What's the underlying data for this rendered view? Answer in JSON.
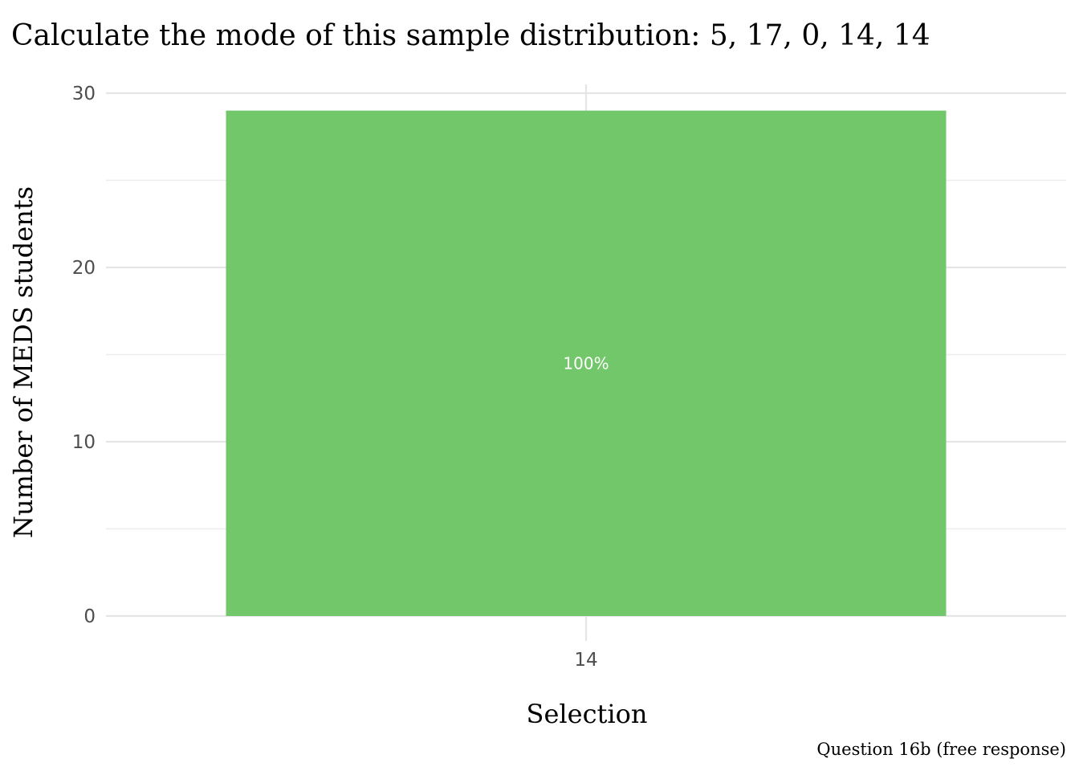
{
  "chart_data": {
    "type": "bar",
    "title": "Calculate the mode of this sample distribution: 5, 17, 0, 14, 14",
    "xlabel": "Selection",
    "ylabel": "Number of MEDS students",
    "caption": "Question 16b (free response)",
    "categories": [
      "14"
    ],
    "values": [
      29
    ],
    "bar_labels": [
      "100%"
    ],
    "ylim": [
      0,
      30
    ],
    "yticks": [
      0,
      10,
      20,
      30
    ],
    "grid": true,
    "legend": "none",
    "colors": {
      "bar": "#71c76a",
      "grid": "#e5e5e5",
      "tick_text": "#4d4d4d"
    }
  }
}
